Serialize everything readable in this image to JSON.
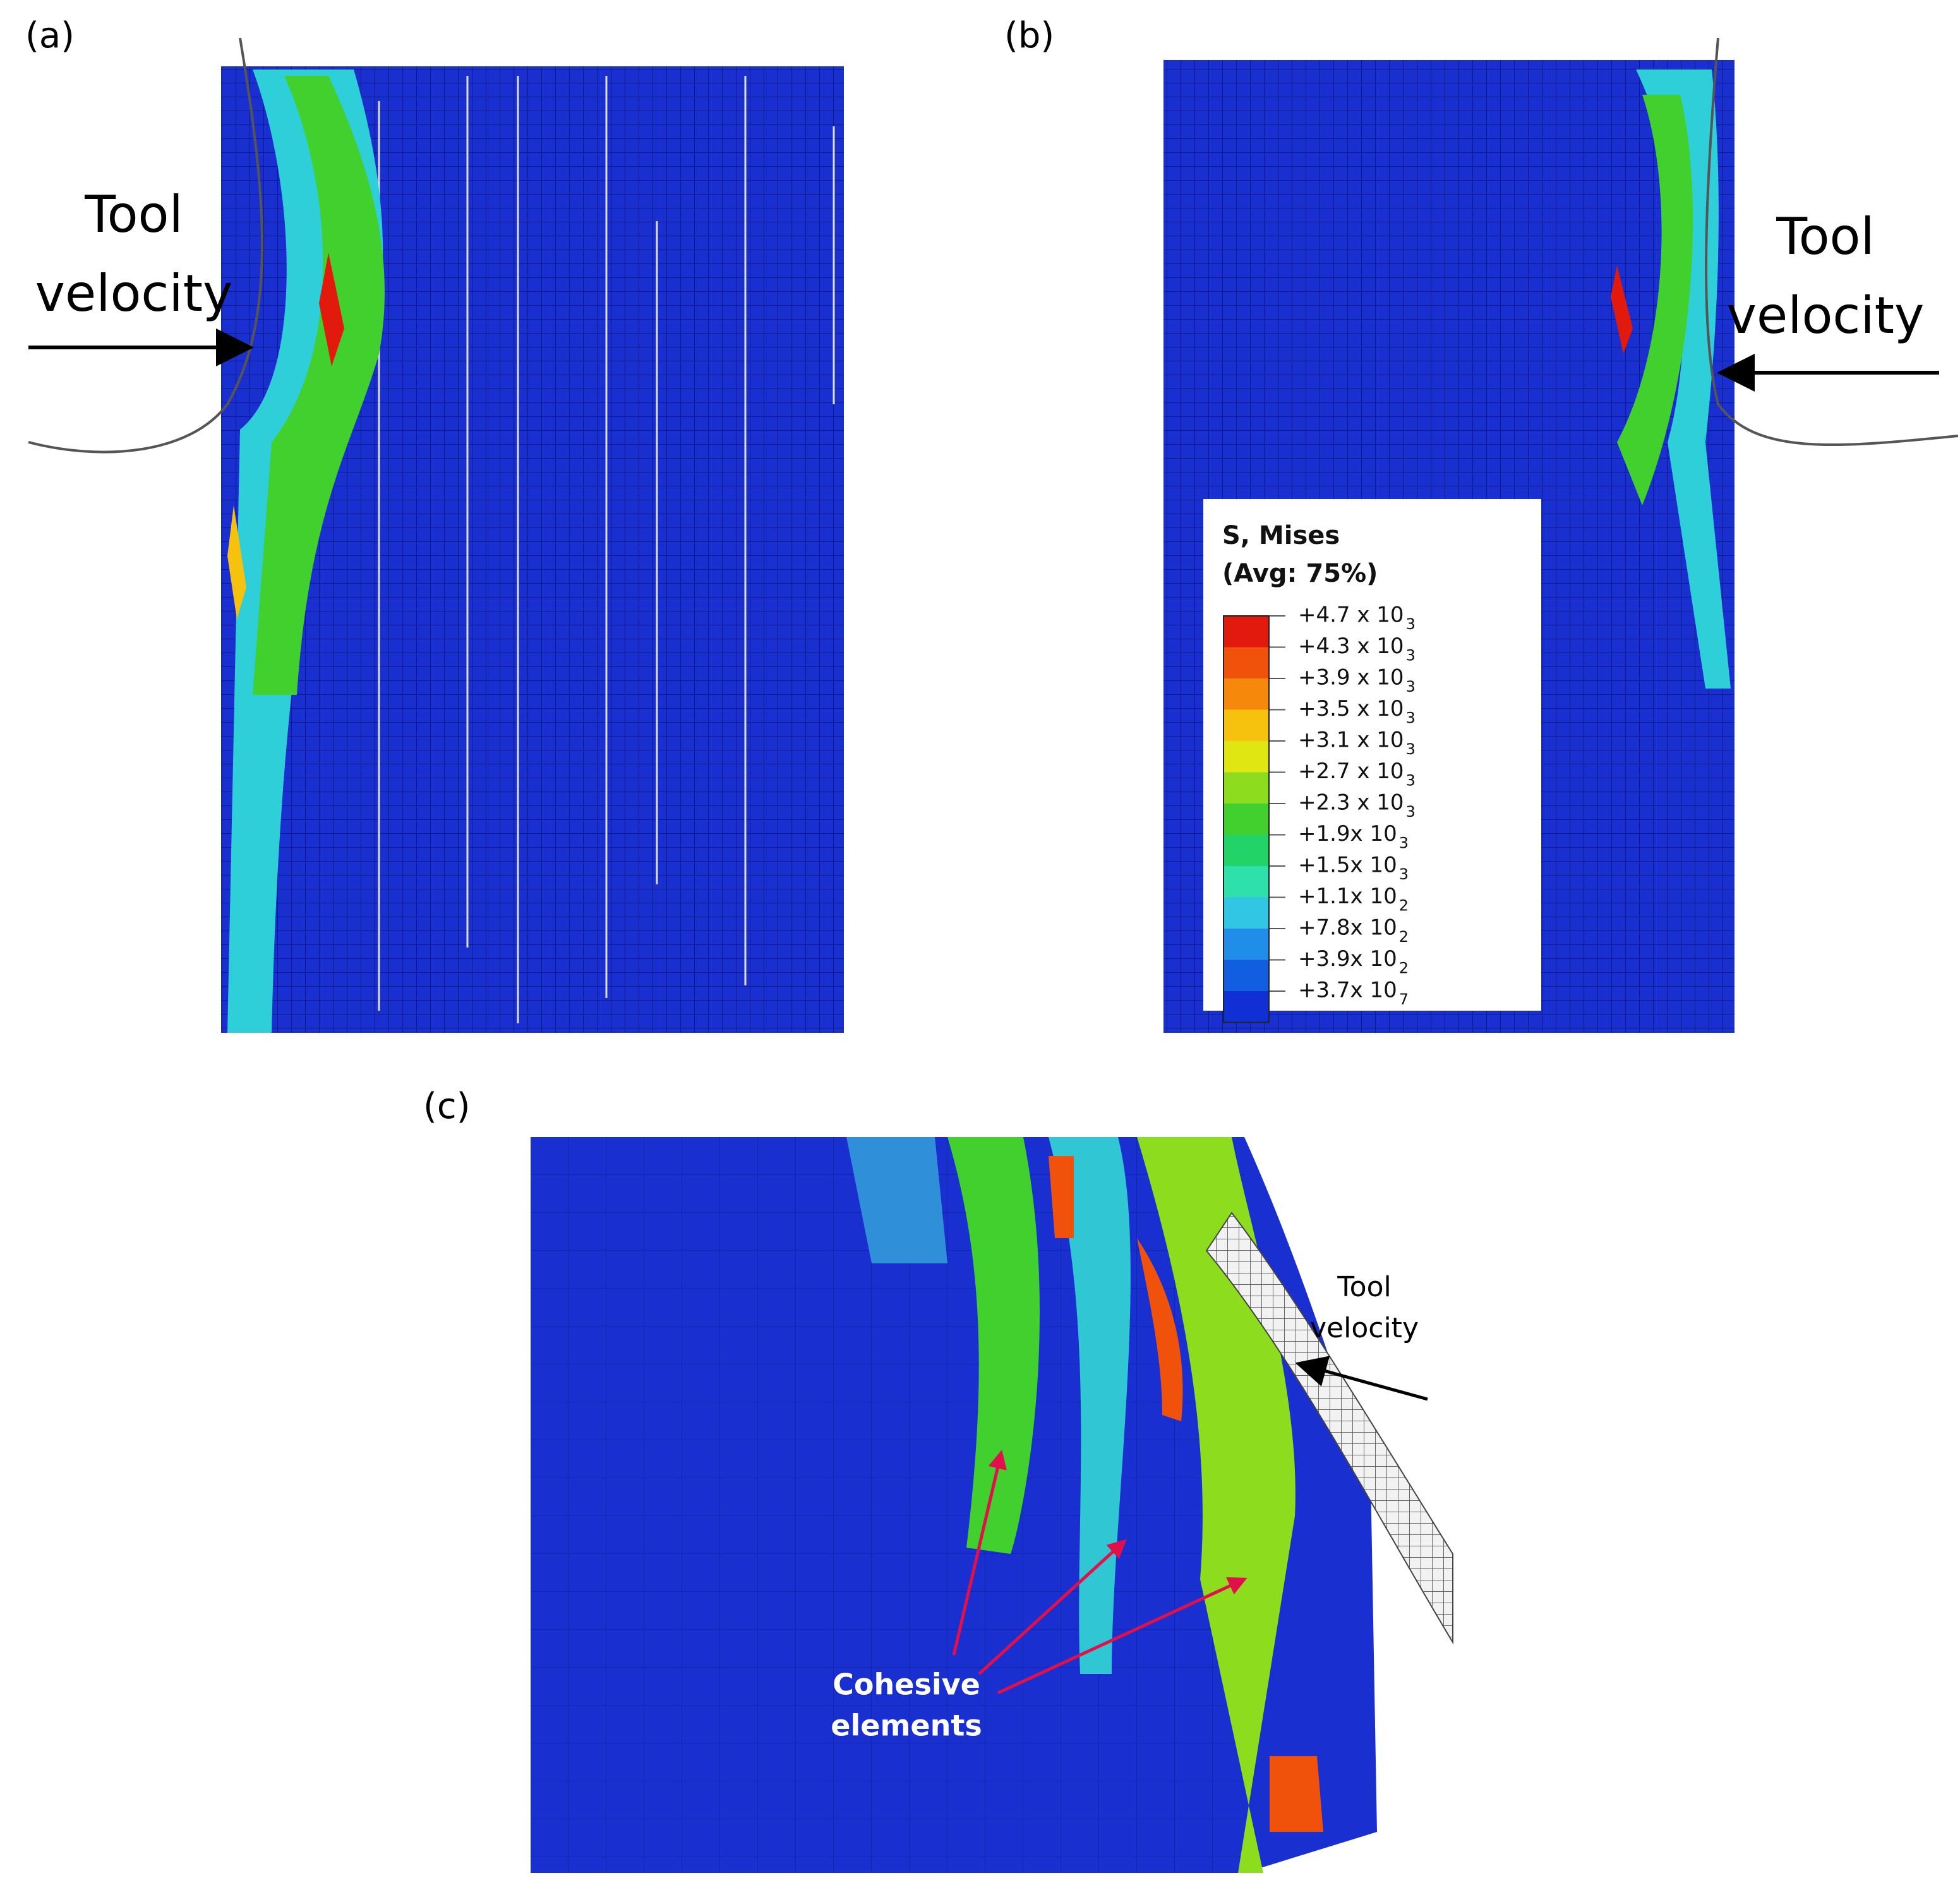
{
  "panels": [
    {
      "label": "(a)",
      "annotation": {
        "lines": [
          "Tool",
          "velocity"
        ]
      }
    },
    {
      "label": "(b)",
      "annotation": {
        "lines": [
          "Tool",
          "velocity"
        ]
      },
      "legend": {
        "title": "S, Mises",
        "subtitle": "(Avg: 75%)",
        "entries": [
          {
            "label": "+4.7 x 10",
            "exponent": "3",
            "color": "#e21a0e"
          },
          {
            "label": "+4.3 x 10",
            "exponent": "3",
            "color": "#f0520c"
          },
          {
            "label": "+3.9 x 10",
            "exponent": "3",
            "color": "#f6880c"
          },
          {
            "label": "+3.5 x 10",
            "exponent": "3",
            "color": "#f6c20e"
          },
          {
            "label": "+3.1 x 10",
            "exponent": "3",
            "color": "#dfe612"
          },
          {
            "label": "+2.7 x 10",
            "exponent": "3",
            "color": "#8edc1e"
          },
          {
            "label": "+2.3 x 10",
            "exponent": "3",
            "color": "#42d02e"
          },
          {
            "label": "+1.9x 10",
            "exponent": "3",
            "color": "#22d468"
          },
          {
            "label": "+1.5x 10",
            "exponent": "3",
            "color": "#2ee0aa"
          },
          {
            "label": "+1.1x 10",
            "exponent": "2",
            "color": "#30c6e4"
          },
          {
            "label": "+7.8x 10",
            "exponent": "2",
            "color": "#208ee8"
          },
          {
            "label": "+3.9x 10",
            "exponent": "2",
            "color": "#125ee0"
          },
          {
            "label": "+3.7x 10",
            "exponent": "7",
            "color": "#1030d6"
          }
        ]
      }
    },
    {
      "label": "(c)",
      "annotation": {
        "lines": [
          "Tool",
          "velocity"
        ]
      },
      "callout": {
        "lines": [
          "Cohesive",
          "elements"
        ]
      }
    }
  ]
}
